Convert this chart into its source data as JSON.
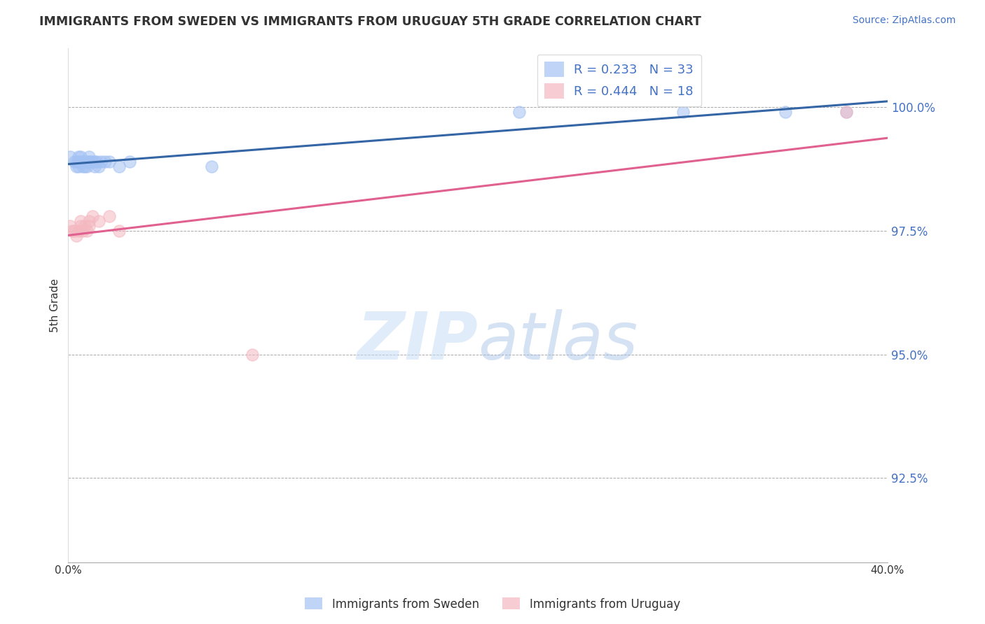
{
  "title": "IMMIGRANTS FROM SWEDEN VS IMMIGRANTS FROM URUGUAY 5TH GRADE CORRELATION CHART",
  "source_text": "Source: ZipAtlas.com",
  "ylabel": "5th Grade",
  "xlim": [
    0.0,
    0.4
  ],
  "ylim": [
    0.908,
    1.012
  ],
  "xticks": [
    0.0,
    0.05,
    0.1,
    0.15,
    0.2,
    0.25,
    0.3,
    0.35,
    0.4
  ],
  "xtick_labels": [
    "0.0%",
    "",
    "",
    "",
    "",
    "",
    "",
    "",
    "40.0%"
  ],
  "yticks": [
    0.925,
    0.95,
    0.975,
    1.0
  ],
  "ytick_labels": [
    "92.5%",
    "95.0%",
    "97.5%",
    "100.0%"
  ],
  "sweden_R": 0.233,
  "sweden_N": 33,
  "uruguay_R": 0.444,
  "uruguay_N": 18,
  "sweden_color": "#a4c2f4",
  "uruguay_color": "#f4b8c1",
  "sweden_line_color": "#3465a4",
  "uruguay_line_color": "#e06090",
  "sweden_x": [
    0.001,
    0.003,
    0.004,
    0.004,
    0.005,
    0.005,
    0.005,
    0.006,
    0.006,
    0.007,
    0.007,
    0.008,
    0.008,
    0.009,
    0.009,
    0.01,
    0.01,
    0.011,
    0.012,
    0.013,
    0.013,
    0.014,
    0.015,
    0.016,
    0.018,
    0.02,
    0.025,
    0.03,
    0.07,
    0.22,
    0.3,
    0.35,
    0.38
  ],
  "sweden_y": [
    0.99,
    0.989,
    0.988,
    0.989,
    0.988,
    0.989,
    0.99,
    0.989,
    0.99,
    0.988,
    0.989,
    0.988,
    0.989,
    0.988,
    0.989,
    0.989,
    0.99,
    0.989,
    0.989,
    0.989,
    0.988,
    0.989,
    0.988,
    0.989,
    0.989,
    0.989,
    0.988,
    0.989,
    0.988,
    0.999,
    0.999,
    0.999,
    0.999
  ],
  "uruguay_x": [
    0.001,
    0.002,
    0.003,
    0.004,
    0.005,
    0.006,
    0.006,
    0.007,
    0.008,
    0.009,
    0.01,
    0.01,
    0.012,
    0.015,
    0.02,
    0.025,
    0.09,
    0.38
  ],
  "uruguay_y": [
    0.976,
    0.975,
    0.975,
    0.974,
    0.975,
    0.976,
    0.977,
    0.975,
    0.976,
    0.975,
    0.976,
    0.977,
    0.978,
    0.977,
    0.978,
    0.975,
    0.95,
    0.999
  ],
  "watermark_zip": "ZIP",
  "watermark_atlas": "atlas",
  "background_color": "#ffffff",
  "grid_color": "#aaaaaa",
  "tick_color": "#4472c4",
  "label_color": "#333333"
}
